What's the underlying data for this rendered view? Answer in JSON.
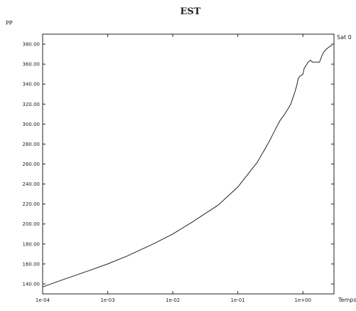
{
  "chart_data": {
    "type": "line",
    "title": "EST",
    "ylabel": "PP",
    "xlabel": "Temps",
    "series_label": "Sat 0",
    "x_scale": "log",
    "xlim": [
      0.0001,
      3
    ],
    "ylim": [
      130,
      390
    ],
    "x_ticks": [
      0.0001,
      0.001,
      0.01,
      0.1,
      1
    ],
    "x_tick_labels": [
      "1e-04",
      "1e-03",
      "1e-02",
      "1e-01",
      "1e+00"
    ],
    "y_ticks": [
      140,
      160,
      180,
      200,
      220,
      240,
      260,
      280,
      300,
      320,
      340,
      360,
      380
    ],
    "y_tick_labels": [
      "140.00",
      "160.00",
      "180.00",
      "200.00",
      "220.00",
      "240.00",
      "260.00",
      "280.00",
      "300.00",
      "320.00",
      "340.00",
      "360.00",
      "380.00"
    ],
    "grid": false,
    "series": [
      {
        "x": [
          0.0001,
          0.0002,
          0.0005,
          0.001,
          0.002,
          0.005,
          0.01,
          0.02,
          0.05,
          0.1,
          0.2,
          0.3,
          0.4,
          0.45,
          0.5,
          0.55,
          0.6,
          0.65,
          0.7,
          0.75,
          0.8,
          0.85,
          0.9,
          1.0,
          1.05,
          1.1,
          1.2,
          1.3,
          1.4,
          1.5,
          1.6,
          1.8,
          2.0,
          2.2,
          2.5,
          2.8
        ],
        "y": [
          137,
          144,
          153,
          160,
          168,
          180,
          190,
          202,
          219,
          237,
          262,
          282,
          298,
          304,
          308,
          312,
          316,
          320,
          326,
          332,
          338,
          346,
          348,
          350,
          356,
          358,
          362,
          364,
          362,
          362,
          362,
          362,
          370,
          374,
          377,
          379
        ]
      }
    ]
  }
}
